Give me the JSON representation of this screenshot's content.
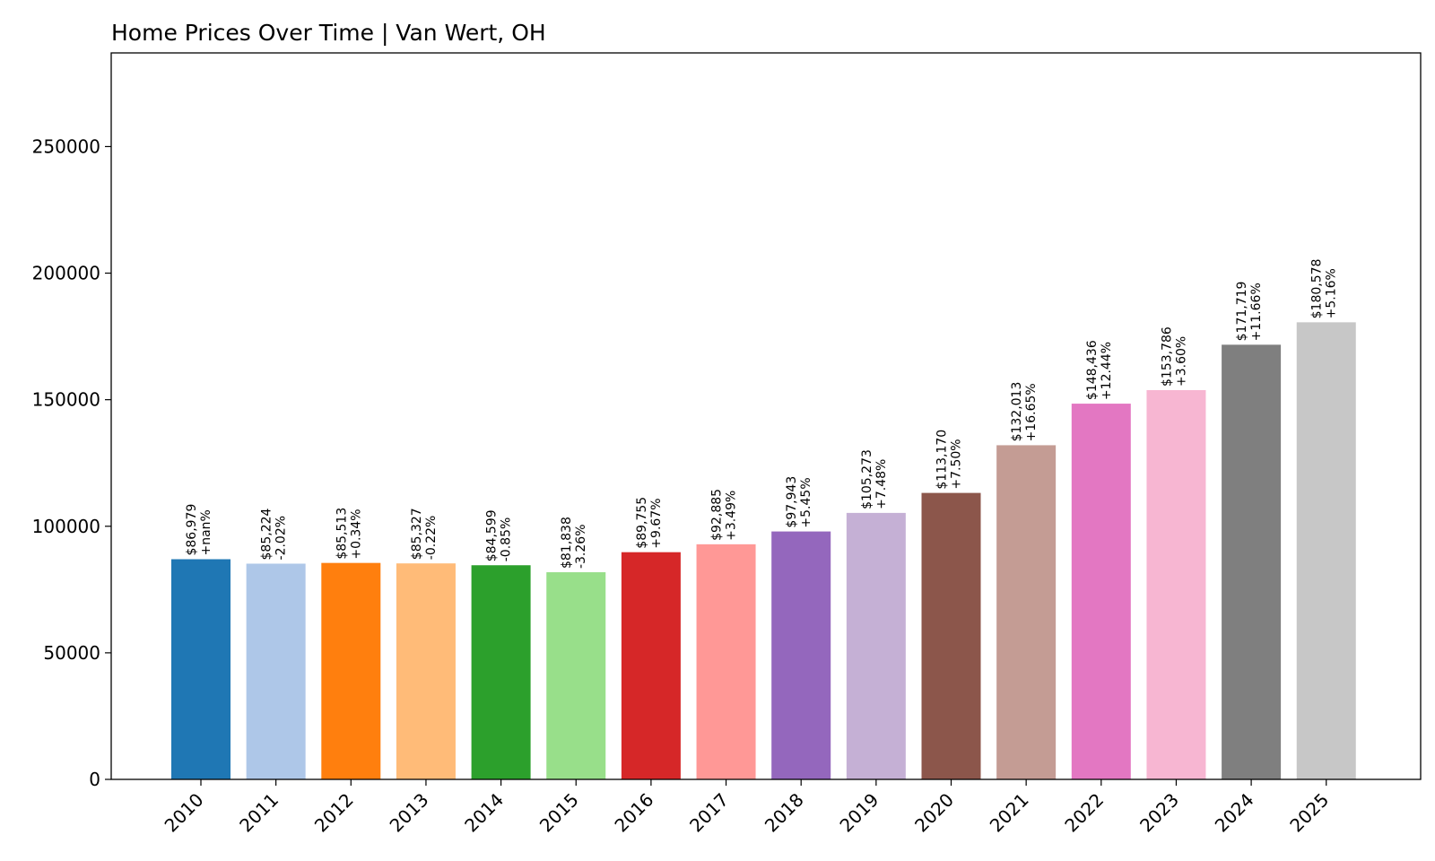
{
  "chart_data": {
    "type": "bar",
    "title": "Home Prices Over Time | Van Wert, OH",
    "xlabel": "",
    "ylabel": "",
    "ylim": [
      0,
      287000
    ],
    "yticks": [
      0,
      50000,
      100000,
      150000,
      200000,
      250000
    ],
    "grid": false,
    "legend": "none",
    "categories": [
      "2010",
      "2011",
      "2012",
      "2013",
      "2014",
      "2015",
      "2016",
      "2017",
      "2018",
      "2019",
      "2020",
      "2021",
      "2022",
      "2023",
      "2024",
      "2025"
    ],
    "values": [
      86979,
      85224,
      85513,
      85327,
      84599,
      81838,
      89755,
      92885,
      97943,
      105273,
      113170,
      132013,
      148436,
      153786,
      171719,
      180578
    ],
    "price_labels": [
      "$86,979",
      "$85,224",
      "$85,513",
      "$85,327",
      "$84,599",
      "$81,838",
      "$89,755",
      "$92,885",
      "$97,943",
      "$105,273",
      "$113,170",
      "$132,013",
      "$148,436",
      "$153,786",
      "$171,719",
      "$180,578"
    ],
    "change_labels": [
      "+nan%",
      "-2.02%",
      "+0.34%",
      "-0.22%",
      "-0.85%",
      "-3.26%",
      "+9.67%",
      "+3.49%",
      "+5.45%",
      "+7.48%",
      "+7.50%",
      "+16.65%",
      "+12.44%",
      "+3.60%",
      "+11.66%",
      "+5.16%"
    ],
    "colors": [
      "#1f77b4",
      "#aec7e8",
      "#ff7f0e",
      "#ffbb78",
      "#2ca02c",
      "#98df8a",
      "#d62728",
      "#ff9896",
      "#9467bd",
      "#c5b0d5",
      "#8c564b",
      "#c49c94",
      "#e377c2",
      "#f7b6d2",
      "#7f7f7f",
      "#c7c7c7"
    ]
  }
}
